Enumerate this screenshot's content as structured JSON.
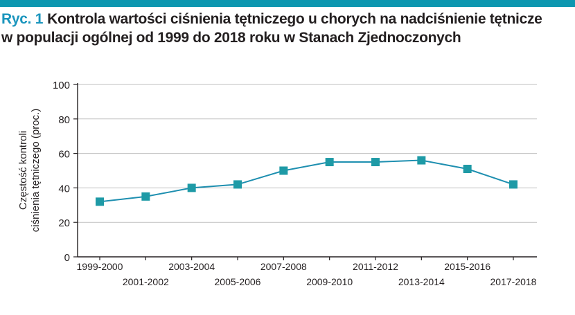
{
  "figure": {
    "prefix": "Ryc. 1",
    "title_line1": "Kontrola wartości ciśnienia tętniczego u chorych na nadciśnienie tętnicze",
    "title_line2": "w populacji ogólnej od 1999 do 2018 roku w Stanach Zjednoczonych"
  },
  "colors": {
    "accent_bar": "#0d97b0",
    "line": "#1e8fb0",
    "marker": "#1e9aa6",
    "axis": "#231f20",
    "grid": "#bfbfbf"
  },
  "chart_data": {
    "type": "line",
    "title": "Kontrola wartości ciśnienia tętniczego u chorych na nadciśnienie tętnicze w populacji ogólnej od 1999 do 2018 roku w Stanach Zjednoczonych",
    "ylabel_line1": "Częstość kontroli",
    "ylabel_line2": "ciśnienia tętniczego (proc.)",
    "xlabel": "",
    "categories": [
      "1999-2000",
      "2001-2002",
      "2003-2004",
      "2005-2006",
      "2007-2008",
      "2009-2010",
      "2011-2012",
      "2013-2014",
      "2015-2016",
      "2017-2018"
    ],
    "values": [
      32,
      35,
      40,
      42,
      50,
      55,
      55,
      56,
      51,
      42
    ],
    "ylim": [
      0,
      100
    ],
    "yticks": [
      0,
      20,
      40,
      60,
      80,
      100
    ],
    "grid": true,
    "marker": "square"
  }
}
